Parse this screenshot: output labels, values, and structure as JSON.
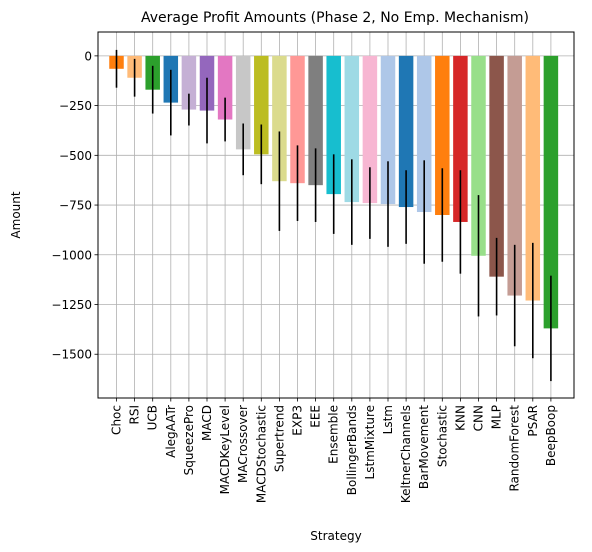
{
  "chart_data": {
    "type": "bar",
    "title": "Average Profit Amounts (Phase 2, No Emp. Mechanism)",
    "xlabel": "Strategy",
    "ylabel": "Amount",
    "ylim": [
      -1720,
      120
    ],
    "yticks": [
      0,
      -250,
      -500,
      -750,
      -1000,
      -1250,
      -1500
    ],
    "ytick_labels": [
      "0",
      "−250",
      "−500",
      "−750",
      "−1000",
      "−1250",
      "−1500"
    ],
    "grid": true,
    "categories": [
      "Choc",
      "RSI",
      "UCB",
      "AlegAATr",
      "SqueezePro",
      "MACD",
      "MACDKeyLevel",
      "MACrossover",
      "MACDStochastic",
      "Supertrend",
      "EXP3",
      "EEE",
      "Ensemble",
      "BollingerBands",
      "LstmMixture",
      "Lstm",
      "KeltnerChannels",
      "BarMovement",
      "Stochastic",
      "KNN",
      "CNN",
      "MLP",
      "RandomForest",
      "PSAR",
      "BeepBoop"
    ],
    "values": [
      -65,
      -110,
      -170,
      -235,
      -270,
      -275,
      -320,
      -470,
      -495,
      -630,
      -640,
      -650,
      -695,
      -735,
      -740,
      -745,
      -760,
      -785,
      -800,
      -835,
      -1005,
      -1110,
      -1205,
      -1230,
      -1370
    ],
    "errors": [
      95,
      95,
      120,
      165,
      80,
      165,
      110,
      130,
      150,
      250,
      190,
      185,
      200,
      215,
      180,
      215,
      185,
      260,
      235,
      260,
      305,
      195,
      255,
      290,
      265
    ],
    "colors": [
      "#ff7f0e",
      "#ffbb78",
      "#2ca02c",
      "#1f77b4",
      "#c5b0d5",
      "#9467bd",
      "#e377c2",
      "#c7c7c7",
      "#bcbd22",
      "#dbdb8d",
      "#ff9896",
      "#7f7f7f",
      "#17becf",
      "#9edae5",
      "#f7b6d2",
      "#aec7e8",
      "#1f77b4",
      "#aec7e8",
      "#ff7f0e",
      "#d62728",
      "#98df8a",
      "#8c564b",
      "#c49c94",
      "#ffbb78",
      "#2ca02c"
    ]
  }
}
